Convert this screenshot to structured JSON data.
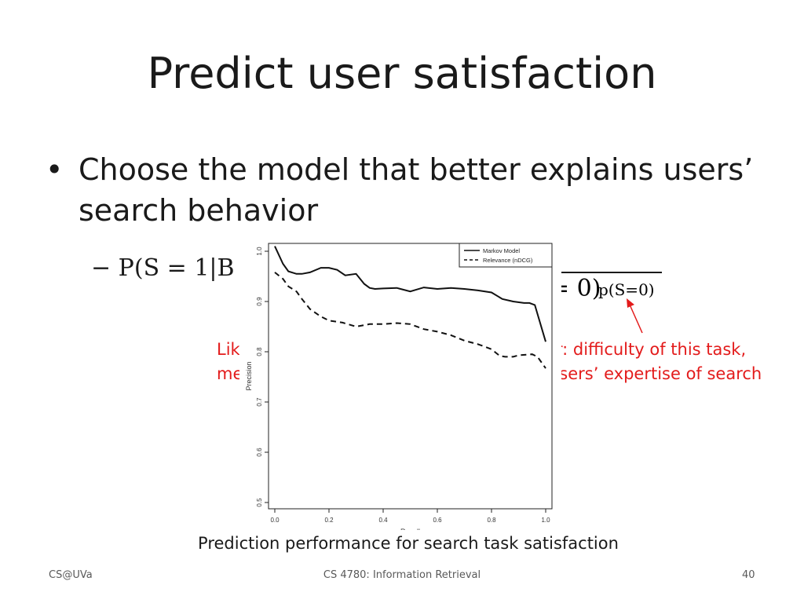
{
  "slide": {
    "title": "Predict user satisfaction",
    "bullet_mark": "•",
    "bullet_text": "Choose the model that better explains users’ search behavior",
    "sub_bullet": "− P(S = 1|B",
    "formula_numerator_fragment": ")",
    "formula_denominator_fragment": "= 0)",
    "formula_denominator_small": "p(S=0)",
    "annotation_line1_left": "Lik",
    "annotation_line1_right": "or: difficulty of this task,",
    "annotation_line2_left": "me",
    "annotation_line2_right": "users’ expertise of search",
    "caption": "Prediction performance for search task satisfaction",
    "footer_left": "CS@UVa",
    "footer_center": "CS 4780: Information Retrieval",
    "footer_right": "40",
    "annotation_color": "#e31b1b"
  },
  "chart_data": {
    "type": "line",
    "title": "",
    "xlabel": "Recall",
    "ylabel": "Precision",
    "xlim": [
      0.0,
      1.0
    ],
    "ylim": [
      0.5,
      1.0
    ],
    "xticks": [
      "0.0",
      "0.2",
      "0.4",
      "0.6",
      "0.8",
      "1.0"
    ],
    "yticks": [
      "0.5",
      "0.6",
      "0.7",
      "0.8",
      "0.9",
      "1.0"
    ],
    "legend_position": "top-right",
    "grid": false,
    "series": [
      {
        "name": "Markov Model",
        "style": "solid",
        "x": [
          0.0,
          0.03,
          0.05,
          0.08,
          0.1,
          0.13,
          0.17,
          0.2,
          0.23,
          0.26,
          0.3,
          0.33,
          0.35,
          0.37,
          0.4,
          0.45,
          0.5,
          0.55,
          0.6,
          0.65,
          0.7,
          0.75,
          0.8,
          0.84,
          0.88,
          0.92,
          0.94,
          0.96,
          1.0
        ],
        "y": [
          1.01,
          0.975,
          0.96,
          0.955,
          0.955,
          0.958,
          0.967,
          0.967,
          0.963,
          0.952,
          0.955,
          0.935,
          0.927,
          0.925,
          0.926,
          0.927,
          0.92,
          0.928,
          0.925,
          0.927,
          0.925,
          0.922,
          0.918,
          0.905,
          0.9,
          0.897,
          0.897,
          0.893,
          0.82
        ]
      },
      {
        "name": "Relevance (nDCG)",
        "style": "dashed",
        "x": [
          0.0,
          0.03,
          0.05,
          0.08,
          0.1,
          0.13,
          0.17,
          0.2,
          0.25,
          0.3,
          0.35,
          0.4,
          0.45,
          0.5,
          0.55,
          0.6,
          0.65,
          0.7,
          0.75,
          0.8,
          0.83,
          0.85,
          0.88,
          0.9,
          0.95,
          0.97,
          1.0
        ],
        "y": [
          0.958,
          0.945,
          0.93,
          0.92,
          0.905,
          0.885,
          0.87,
          0.862,
          0.858,
          0.85,
          0.855,
          0.855,
          0.857,
          0.855,
          0.845,
          0.84,
          0.833,
          0.822,
          0.815,
          0.805,
          0.792,
          0.79,
          0.79,
          0.793,
          0.795,
          0.79,
          0.767
        ]
      }
    ]
  }
}
